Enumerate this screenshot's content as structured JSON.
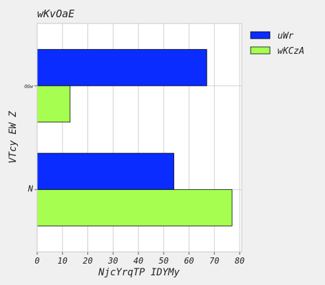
{
  "chart_data": {
    "type": "bar",
    "orientation": "horizontal",
    "title": "wKvOaE",
    "xlabel": "NjcYrqTP IDYMy",
    "ylabel": "VTcy EW Z",
    "categories": [
      "N",
      "OGw"
    ],
    "series": [
      {
        "name": "uWr",
        "color": "#0a2cff",
        "values": [
          54,
          67
        ]
      },
      {
        "name": "wKCzA",
        "color": "#a6ff50",
        "values": [
          77,
          13
        ]
      }
    ],
    "xlim": [
      0,
      80.8
    ],
    "xticks": [
      0,
      10,
      20,
      30,
      40,
      50,
      60,
      70,
      80
    ],
    "grid": true,
    "legend_position": "top-right, outside plot"
  }
}
